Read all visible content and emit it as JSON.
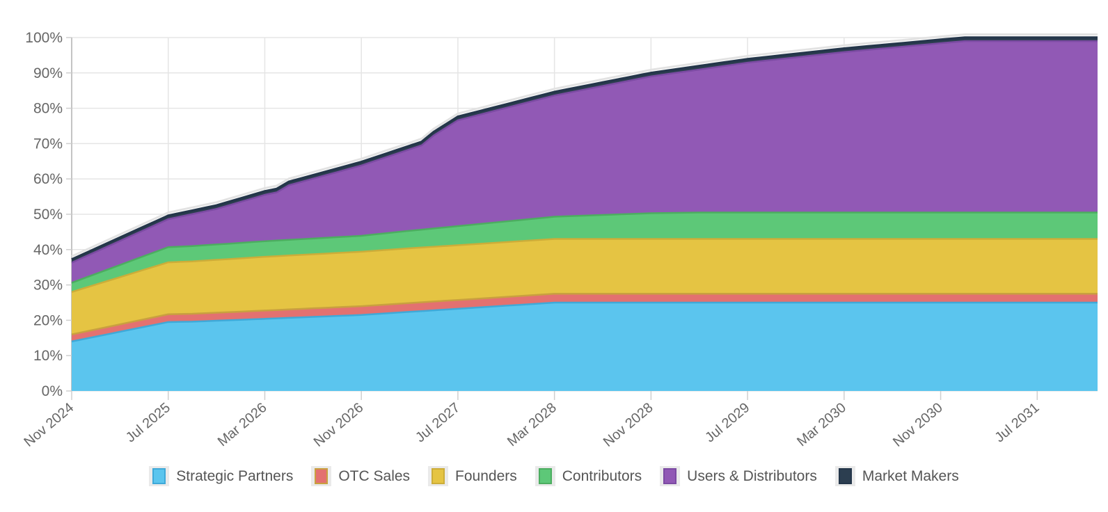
{
  "chart_data": {
    "type": "area",
    "stacked": true,
    "title": "",
    "xlabel": "",
    "ylabel": "",
    "unit": "%",
    "ylim": [
      0,
      100
    ],
    "grid": true,
    "legend_position": "bottom",
    "y_ticks": [
      "0%",
      "10%",
      "20%",
      "30%",
      "40%",
      "50%",
      "60%",
      "70%",
      "80%",
      "90%",
      "100%"
    ],
    "x_tick_labels": [
      "Nov 2024",
      "Jul 2025",
      "Mar 2026",
      "Nov 2026",
      "Jul 2027",
      "Mar 2028",
      "Nov 2028",
      "Jul 2029",
      "Mar 2030",
      "Nov 2030",
      "Jul 2031"
    ],
    "x_tick_every": 8,
    "x_is_monthly_from": "Nov 2024",
    "points_count": 86,
    "series": [
      {
        "name": "Strategic Partners",
        "fill": "#5BC5EE",
        "line": "#3FA9D8",
        "values": [
          14,
          14.69,
          15.38,
          16.06,
          16.75,
          17.44,
          18.13,
          18.81,
          19.5,
          19.55,
          19.6,
          19.74,
          19.87,
          20.01,
          20.14,
          20.28,
          20.41,
          20.55,
          20.69,
          20.82,
          20.96,
          21.09,
          21.23,
          21.36,
          21.5,
          21.72,
          21.94,
          22.16,
          22.38,
          22.59,
          22.81,
          23.03,
          23.25,
          23.47,
          23.69,
          23.91,
          24.13,
          24.34,
          24.56,
          24.78,
          25,
          25,
          25,
          25,
          25,
          25,
          25,
          25,
          25,
          25,
          25,
          25,
          25,
          25,
          25,
          25,
          25,
          25,
          25,
          25,
          25,
          25,
          25,
          25,
          25,
          25,
          25,
          25,
          25,
          25,
          25,
          25,
          25,
          25,
          25,
          25,
          25,
          25,
          25,
          25,
          25,
          25,
          25,
          25,
          25,
          25
        ]
      },
      {
        "name": "OTC Sales",
        "fill": "#E37170",
        "line": "#C9A03F",
        "values": [
          2,
          2.03,
          2.05,
          2.08,
          2.1,
          2.13,
          2.15,
          2.18,
          2.2,
          2.22,
          2.24,
          2.26,
          2.28,
          2.29,
          2.31,
          2.33,
          2.35,
          2.37,
          2.39,
          2.41,
          2.43,
          2.44,
          2.46,
          2.48,
          2.5,
          2.5,
          2.5,
          2.5,
          2.5,
          2.5,
          2.5,
          2.5,
          2.5,
          2.5,
          2.5,
          2.5,
          2.5,
          2.5,
          2.5,
          2.5,
          2.5,
          2.5,
          2.5,
          2.5,
          2.5,
          2.5,
          2.5,
          2.5,
          2.5,
          2.5,
          2.5,
          2.5,
          2.5,
          2.5,
          2.5,
          2.5,
          2.5,
          2.5,
          2.5,
          2.5,
          2.5,
          2.5,
          2.5,
          2.5,
          2.5,
          2.5,
          2.5,
          2.5,
          2.5,
          2.5,
          2.5,
          2.5,
          2.5,
          2.5,
          2.5,
          2.5,
          2.5,
          2.5,
          2.5,
          2.5,
          2.5,
          2.5,
          2.5,
          2.5,
          2.5,
          2.5
        ]
      },
      {
        "name": "Founders",
        "fill": "#E5C443",
        "line": "#CCAD39",
        "values": [
          12,
          12.34,
          12.68,
          13.01,
          13.35,
          13.69,
          14.03,
          14.36,
          14.7,
          14.76,
          14.83,
          14.89,
          14.95,
          15.01,
          15.08,
          15.14,
          15.2,
          15.23,
          15.25,
          15.28,
          15.3,
          15.33,
          15.35,
          15.38,
          15.4,
          15.43,
          15.45,
          15.48,
          15.5,
          15.5,
          15.5,
          15.5,
          15.5,
          15.5,
          15.5,
          15.5,
          15.5,
          15.5,
          15.5,
          15.5,
          15.5,
          15.5,
          15.5,
          15.5,
          15.5,
          15.5,
          15.5,
          15.5,
          15.5,
          15.5,
          15.5,
          15.5,
          15.5,
          15.5,
          15.5,
          15.5,
          15.5,
          15.5,
          15.5,
          15.5,
          15.5,
          15.5,
          15.5,
          15.5,
          15.5,
          15.5,
          15.5,
          15.5,
          15.5,
          15.5,
          15.5,
          15.5,
          15.5,
          15.5,
          15.5,
          15.5,
          15.5,
          15.5,
          15.5,
          15.5,
          15.5,
          15.5,
          15.5,
          15.5,
          15.5,
          15.5
        ]
      },
      {
        "name": "Contributors",
        "fill": "#5DC878",
        "line": "#4CAD60",
        "values": [
          2.6,
          2.81,
          3.03,
          3.24,
          3.45,
          3.66,
          3.88,
          4.09,
          4.3,
          4.31,
          4.33,
          4.34,
          4.35,
          4.36,
          4.38,
          4.39,
          4.4,
          4.41,
          4.43,
          4.44,
          4.45,
          4.46,
          4.48,
          4.49,
          4.5,
          4.61,
          4.73,
          4.84,
          4.95,
          5.06,
          5.18,
          5.29,
          5.4,
          5.51,
          5.63,
          5.74,
          5.85,
          5.96,
          6.08,
          6.19,
          6.3,
          6.43,
          6.55,
          6.68,
          6.8,
          6.93,
          7.05,
          7.18,
          7.3,
          7.35,
          7.4,
          7.45,
          7.5,
          7.5,
          7.5,
          7.5,
          7.5,
          7.5,
          7.5,
          7.5,
          7.5,
          7.5,
          7.5,
          7.5,
          7.5,
          7.5,
          7.5,
          7.5,
          7.5,
          7.5,
          7.5,
          7.5,
          7.5,
          7.5,
          7.5,
          7.5,
          7.5,
          7.5,
          7.5,
          7.5,
          7.5,
          7.5,
          7.5,
          7.5,
          7.5,
          7.5
        ]
      },
      {
        "name": "Users & Distributors",
        "fill": "#9159B5",
        "line": "#7C4BA3",
        "values": [
          5.7,
          5.97,
          6.23,
          6.52,
          6.8,
          7.07,
          7.33,
          7.62,
          7.9,
          8.49,
          9.05,
          9.55,
          10.05,
          10.83,
          11.59,
          12.36,
          13.14,
          13.64,
          15.44,
          16.18,
          16.93,
          17.68,
          18.41,
          19.16,
          19.9,
          20.68,
          21.46,
          22.24,
          23.03,
          23.85,
          26.31,
          28.13,
          29.95,
          30.5,
          31.03,
          31.58,
          32.12,
          32.68,
          33.21,
          33.76,
          34.3,
          34.85,
          35.4,
          35.95,
          36.5,
          37.05,
          37.6,
          38.15,
          38.7,
          39.14,
          39.58,
          40.01,
          40.45,
          40.94,
          41.43,
          41.91,
          42.4,
          42.78,
          43.15,
          43.53,
          43.9,
          44.28,
          44.65,
          45.03,
          45.4,
          45.71,
          46.03,
          46.34,
          46.65,
          46.96,
          47.28,
          47.59,
          47.9,
          48.2,
          48.5,
          48.5,
          48.5,
          48.5,
          48.5,
          48.5,
          48.5,
          48.5,
          48.5,
          48.5,
          48.5,
          48.5
        ]
      },
      {
        "name": "Market Makers",
        "fill": "#2C3E50",
        "line": "#24364A",
        "values": [
          0.9,
          0.91,
          0.93,
          0.94,
          0.95,
          0.96,
          0.98,
          0.99,
          1,
          1,
          1,
          1,
          1,
          1,
          1,
          1,
          1,
          1,
          1,
          1,
          1,
          1,
          1,
          1,
          1,
          1,
          1,
          1,
          1,
          1,
          1,
          1,
          1,
          1,
          1,
          1,
          1,
          1,
          1,
          1,
          1,
          1,
          1,
          1,
          1,
          1,
          1,
          1,
          1,
          1,
          1,
          1,
          1,
          1,
          1,
          1,
          1,
          1,
          1,
          1,
          1,
          1,
          1,
          1,
          1,
          1,
          1,
          1,
          1,
          1,
          1,
          1,
          1,
          1,
          1,
          1,
          1,
          1,
          1,
          1,
          1,
          1,
          1,
          1,
          1,
          1
        ]
      }
    ]
  },
  "colors": {
    "background": "#FFFFFF",
    "grid": "#E5E5E5",
    "axis_line": "#B5B5B5",
    "tick": "#CFCFCF",
    "axis_text": "#666666",
    "legend_text": "#555555",
    "legend_swatch_bg": "#EAEAEA",
    "top_halo": "#E2E2E2"
  }
}
